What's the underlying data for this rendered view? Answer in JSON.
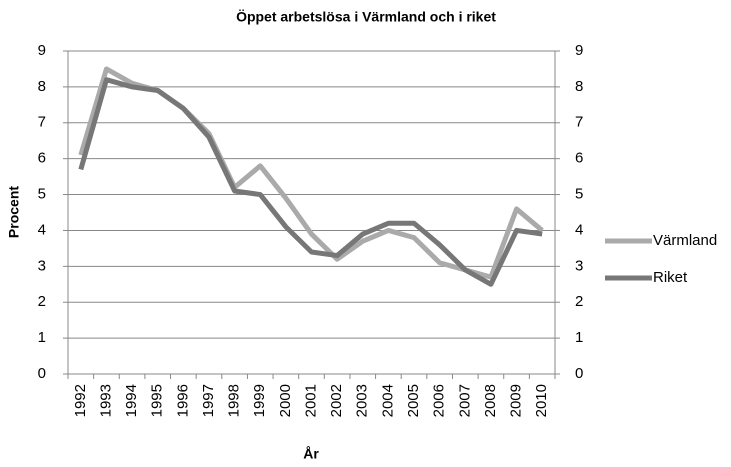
{
  "chart_data": {
    "type": "line",
    "title": "Öppet arbetslösa i Värmland och i riket",
    "xlabel": "År",
    "ylabel": "Procent",
    "categories": [
      "1992",
      "1993",
      "1994",
      "1995",
      "1996",
      "1997",
      "1998",
      "1999",
      "2000",
      "2001",
      "2002",
      "2003",
      "2004",
      "2005",
      "2006",
      "2007",
      "2008",
      "2009",
      "2010"
    ],
    "series": [
      {
        "name": "Värmland",
        "color": "#aaaaaa",
        "values": [
          6.1,
          8.5,
          8.1,
          7.9,
          7.4,
          6.7,
          5.2,
          5.8,
          4.9,
          3.9,
          3.2,
          3.7,
          4.0,
          3.8,
          3.1,
          2.9,
          2.7,
          4.6,
          4.0
        ]
      },
      {
        "name": "Riket",
        "color": "#777777",
        "values": [
          5.7,
          8.2,
          8.0,
          7.9,
          7.4,
          6.6,
          5.1,
          5.0,
          4.1,
          3.4,
          3.3,
          3.9,
          4.2,
          4.2,
          3.6,
          2.9,
          2.5,
          4.0,
          3.9
        ]
      }
    ],
    "ylim": [
      0,
      9
    ],
    "yticks": [
      0,
      1,
      2,
      3,
      4,
      5,
      6,
      7,
      8,
      9
    ],
    "y2lim": [
      0,
      9
    ],
    "y2ticks": [
      0,
      1,
      2,
      3,
      4,
      5,
      6,
      7,
      8,
      9
    ],
    "grid": true,
    "legend": "right"
  }
}
